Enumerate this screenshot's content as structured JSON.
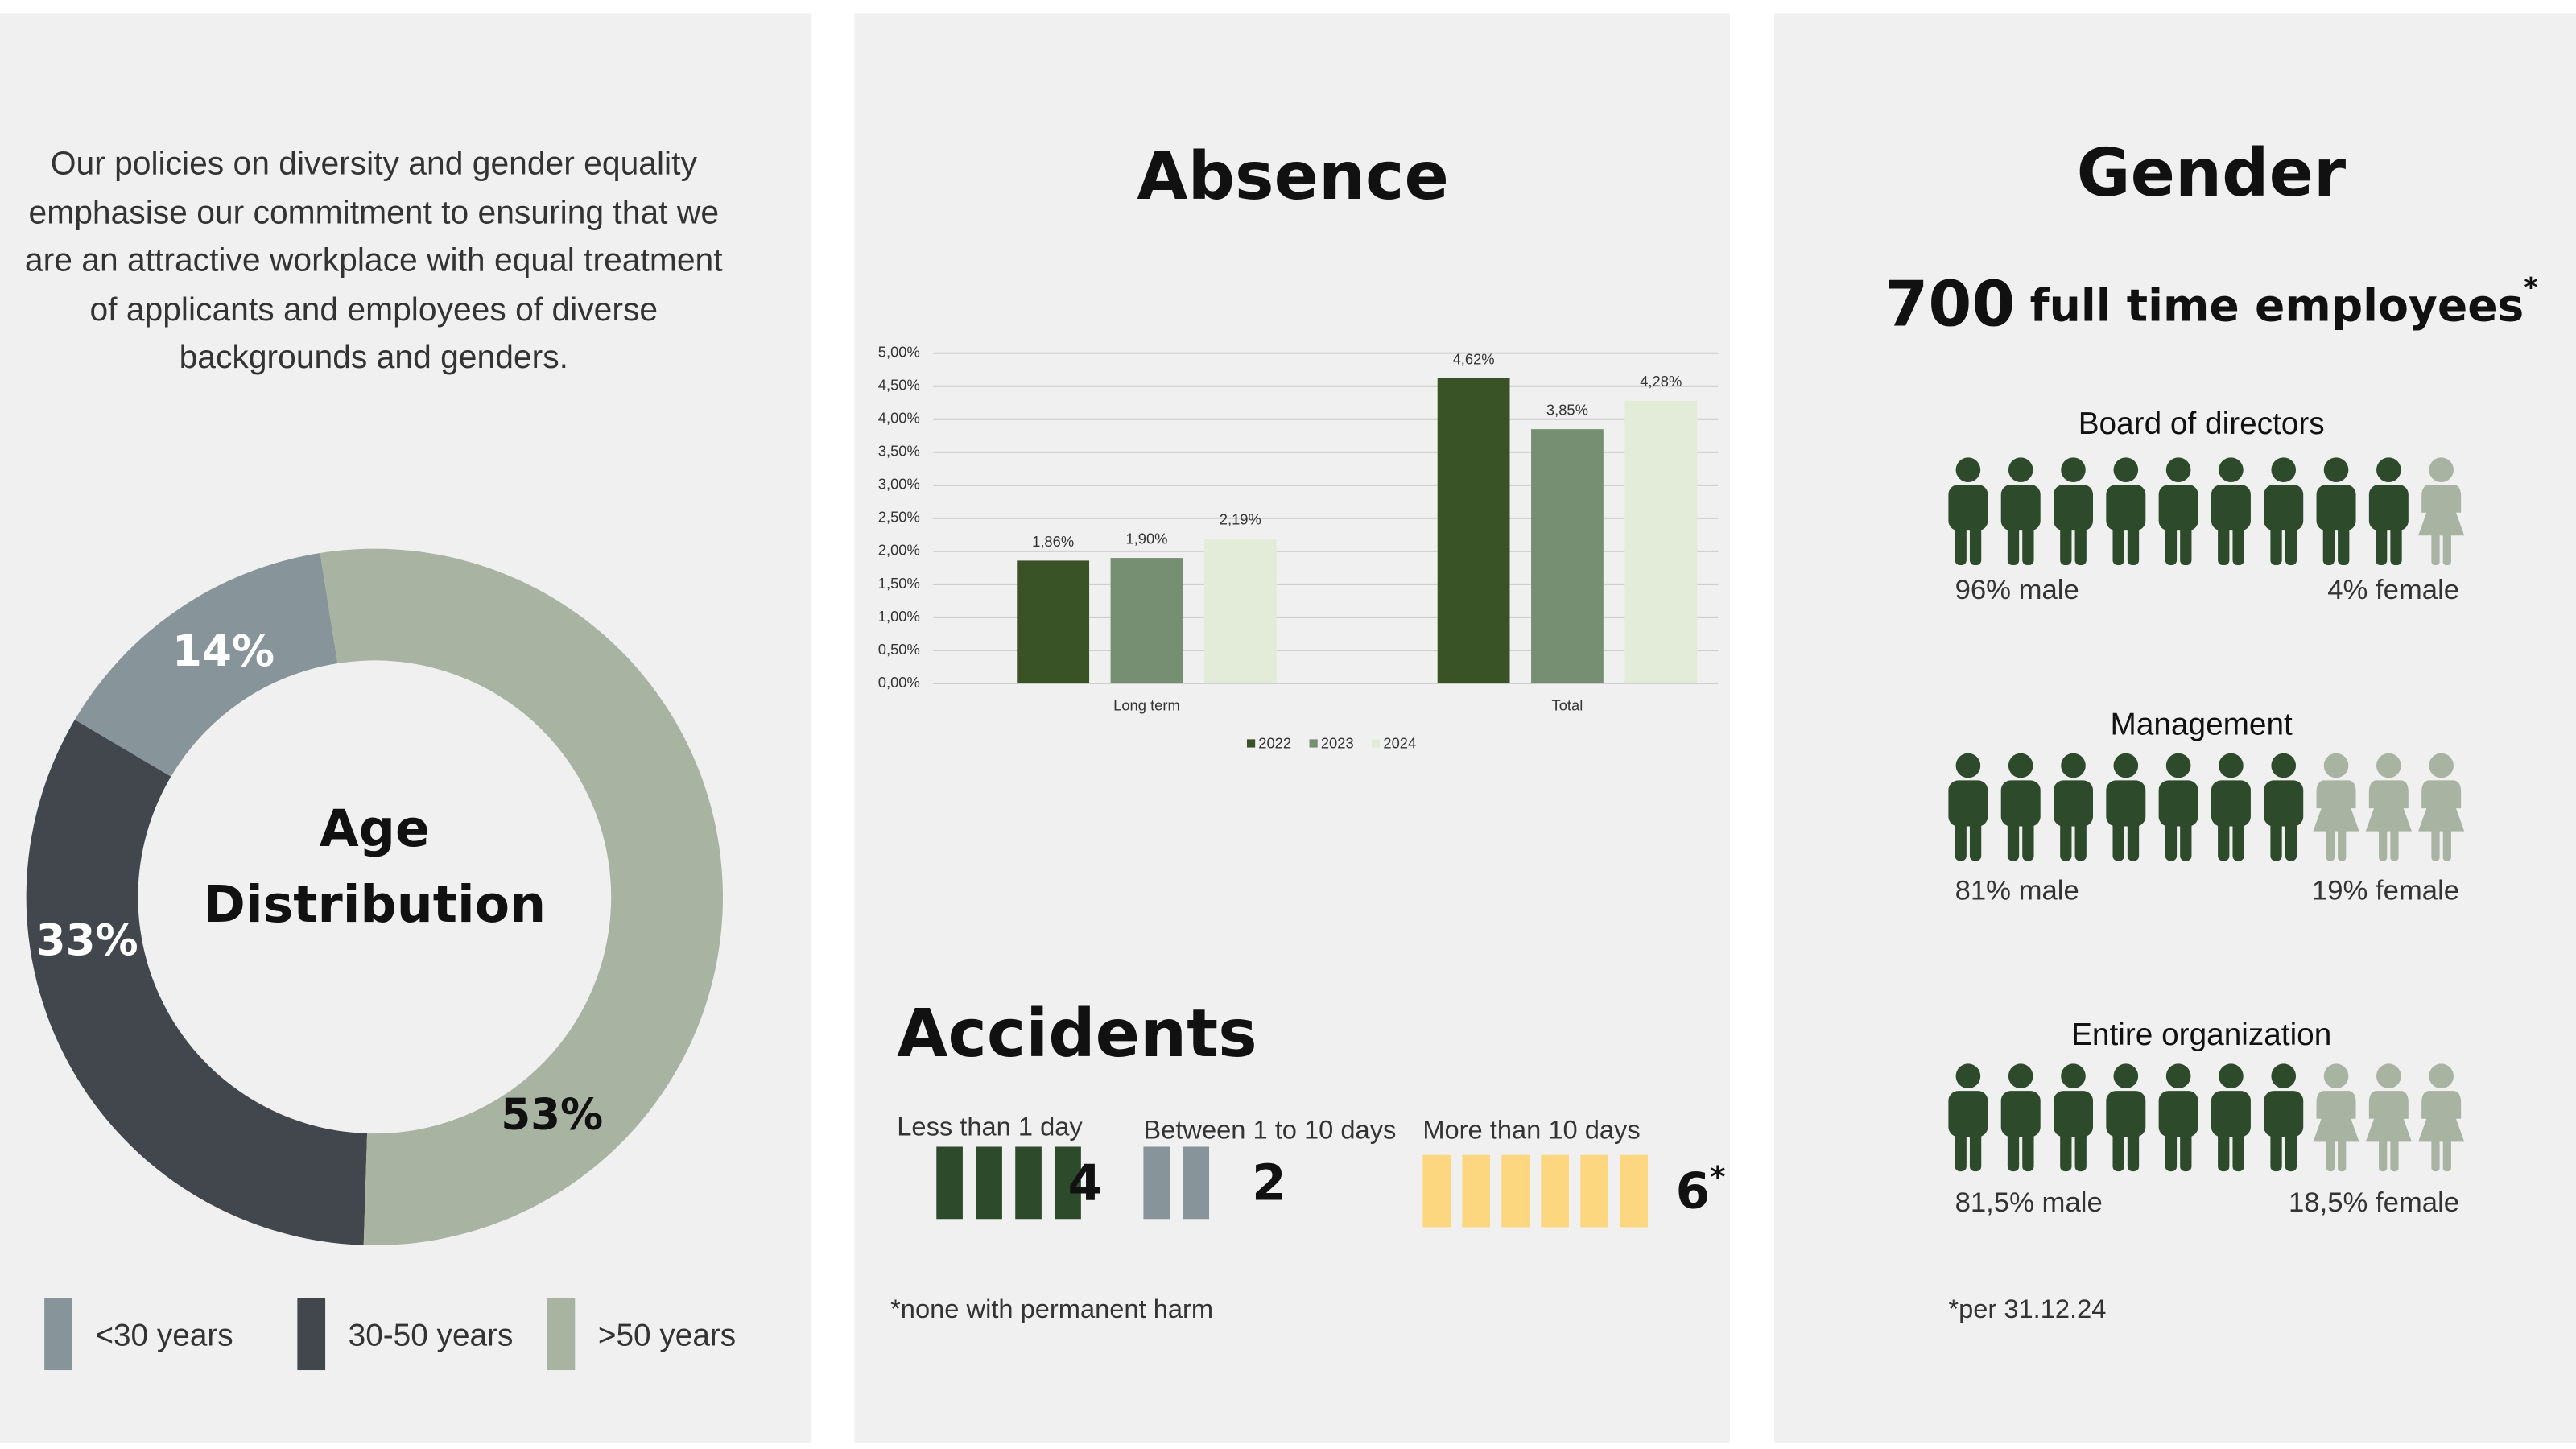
{
  "intro": "Our policies on diversity and gender equality emphasise our commitment to ensuring that we are an attractive workplace with equal treatment of applicants and employees of diverse backgrounds and genders.",
  "chart_data": [
    {
      "type": "donut",
      "title": "Age Distribution",
      "categories": [
        "<30 years",
        "30-50 years",
        ">50 years"
      ],
      "values": [
        14,
        33,
        53
      ],
      "value_labels": [
        "14%",
        "33%",
        "53%"
      ],
      "colors": [
        "#87959a",
        "#41474c",
        "#a9b3a1"
      ],
      "legend": "bottom"
    },
    {
      "type": "bar",
      "title": "Absence",
      "categories": [
        "Long term",
        "Total"
      ],
      "series": [
        {
          "name": "2022",
          "color": "#3a5326",
          "values": [
            1.86,
            4.62
          ],
          "value_labels": [
            "1,86%",
            "4,62%"
          ]
        },
        {
          "name": "2023",
          "color": "#768f72",
          "values": [
            1.9,
            3.85
          ],
          "value_labels": [
            "1,90%",
            "3,85%"
          ]
        },
        {
          "name": "2024",
          "color": "#e2ecd8",
          "values": [
            2.19,
            4.28
          ],
          "value_labels": [
            "2,19%",
            "4,28%"
          ]
        }
      ],
      "ylim": [
        0,
        5
      ],
      "yticks": [
        {
          "value": 0,
          "label": "0,00%"
        },
        {
          "value": 0.5,
          "label": "0,50%"
        },
        {
          "value": 1,
          "label": "1,00%"
        },
        {
          "value": 1.5,
          "label": "1,50%"
        },
        {
          "value": 2,
          "label": "2,00%"
        },
        {
          "value": 2.5,
          "label": "2,50%"
        },
        {
          "value": 3,
          "label": "3,00%"
        },
        {
          "value": 3.5,
          "label": "3,50%"
        },
        {
          "value": 4,
          "label": "4,00%"
        },
        {
          "value": 4.5,
          "label": "4,50%"
        },
        {
          "value": 5,
          "label": "5,00%"
        }
      ],
      "grid": true,
      "legend": "bottom"
    }
  ],
  "accidents": {
    "title": "Accidents",
    "items": [
      {
        "label": "Less than 1 day",
        "count": 4,
        "color": "#2d4a2b"
      },
      {
        "label": "Between 1 to 10 days",
        "count": 2,
        "color": "#87959a"
      },
      {
        "label": "More than 10 days",
        "count": 6,
        "color": "#fdd77f",
        "note": "*"
      }
    ],
    "footnote": "*none with permanent harm"
  },
  "gender": {
    "title": "Gender",
    "headline": {
      "count": 700,
      "label": "full time employees",
      "note": "*"
    },
    "male_color": "#2d4a2b",
    "female_color": "#a9b3a1",
    "groups": [
      {
        "title": "Board of directors",
        "male_icons": 9,
        "female_icons": 1,
        "male_label": "96% male",
        "female_label": "4% female"
      },
      {
        "title": "Management",
        "male_icons": 7,
        "female_icons": 3,
        "male_label": "81% male",
        "female_label": "19% female"
      },
      {
        "title": "Entire organization",
        "male_icons": 7,
        "female_icons": 3,
        "male_label": "81,5% male",
        "female_label": "18,5% female"
      }
    ],
    "footnote": "*per 31.12.24"
  }
}
